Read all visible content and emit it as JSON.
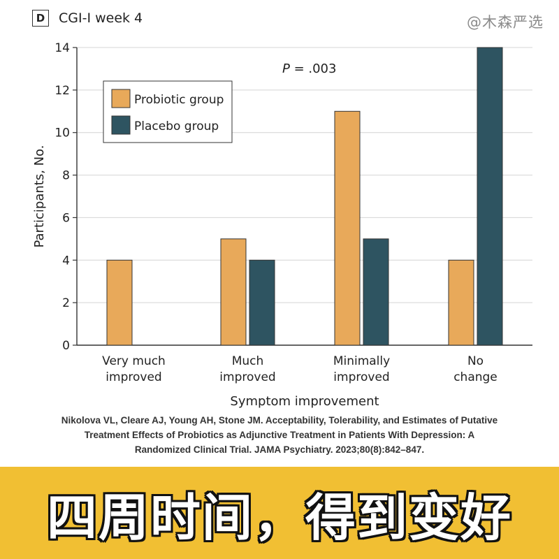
{
  "panel": {
    "badge": "D",
    "title": "CGI-I week 4"
  },
  "watermark": "@木森严选",
  "chart_data": {
    "type": "bar",
    "categories": [
      [
        "Very much",
        "improved"
      ],
      [
        "Much",
        "improved"
      ],
      [
        "Minimally",
        "improved"
      ],
      [
        "No",
        "change"
      ]
    ],
    "series": [
      {
        "name": "Probiotic group",
        "values": [
          4,
          5,
          11,
          4
        ],
        "color": "#e8a95a"
      },
      {
        "name": "Placebo group",
        "values": [
          0,
          4,
          5,
          14
        ],
        "color": "#2e5461"
      }
    ],
    "annotation": "P = .003",
    "xlabel": "Symptom improvement",
    "ylabel": "Participants, No.",
    "ylim": [
      0,
      14
    ],
    "yticks": [
      0,
      2,
      4,
      6,
      8,
      10,
      12,
      14
    ],
    "grid": true,
    "legend_position": "top-left"
  },
  "citation": [
    "Nikolova VL, Cleare AJ, Young AH, Stone JM. Acceptability, Tolerability, and Estimates of Putative",
    "Treatment Effects of Probiotics as Adjunctive Treatment in Patients With Depression: A",
    "Randomized Clinical Trial. JAMA Psychiatry. 2023;80(8):842–847."
  ],
  "banner": {
    "text": "四周时间，得到变好",
    "color": "#f1bf33"
  }
}
